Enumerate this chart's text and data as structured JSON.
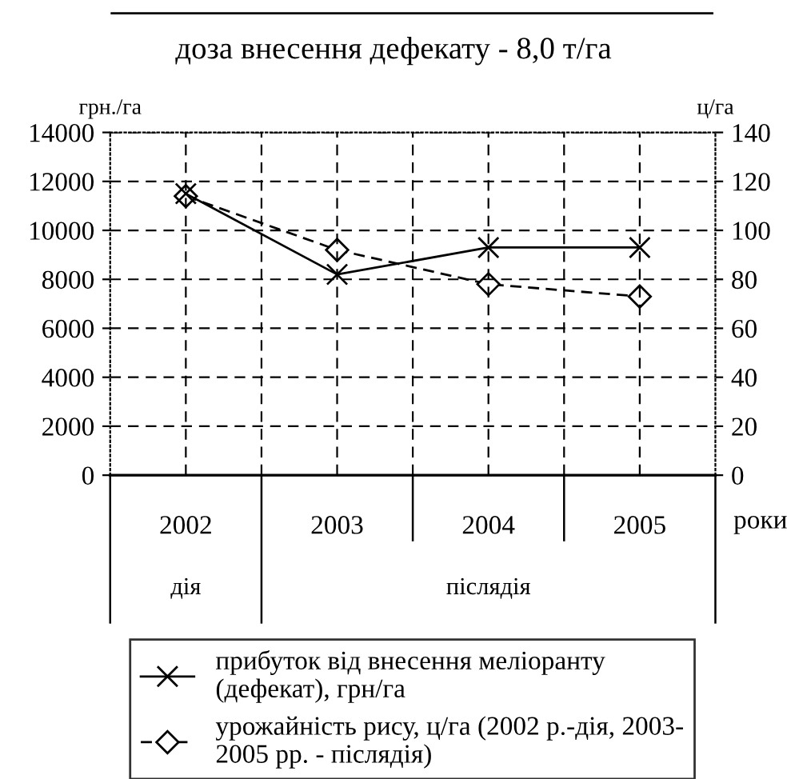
{
  "chart_data": {
    "type": "line",
    "title": "доза внесення дефекату - 8,0 т/га",
    "ylabel": "грн./га",
    "y2label": "ц/га",
    "xlabel": "роки",
    "categories": [
      "2002",
      "2003",
      "2004",
      "2005"
    ],
    "series": [
      {
        "name": "прибуток від внесення меліоранту\n(дефекат), грн/га",
        "color": "#000000",
        "values": [
          11500,
          8200,
          9300,
          9300
        ],
        "marker": "cross",
        "line_style": "solid"
      },
      {
        "name": "урожайність рису, ц/га (2002 р.-дія, 2003-\n2005 рр. - післядія)",
        "color": "#000000",
        "values": [
          114,
          92,
          78,
          73
        ],
        "marker": "diamond",
        "line_style": "dashed",
        "axis": "y2"
      }
    ],
    "ylim": [
      0,
      14000
    ],
    "yticks": [
      0,
      2000,
      4000,
      6000,
      8000,
      10000,
      12000,
      14000
    ],
    "y2lim": [
      0,
      140
    ],
    "y2ticks": [
      0,
      20,
      40,
      60,
      80,
      100,
      120,
      140
    ],
    "annotations": [
      "дія",
      "післядія"
    ],
    "grid": true,
    "legend": "bottom"
  }
}
